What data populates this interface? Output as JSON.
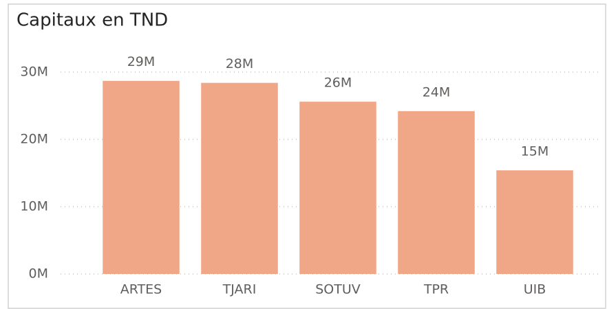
{
  "chart_data": {
    "type": "bar",
    "title": "Capitaux en TND",
    "categories": [
      "ARTES",
      "TJARI",
      "SOTUV",
      "TPR",
      "UIB"
    ],
    "values": [
      28700000,
      28400000,
      25600000,
      24200000,
      15400000
    ],
    "value_labels": [
      "29M",
      "28M",
      "26M",
      "24M",
      "15M"
    ],
    "color": "#f0a787",
    "ylim": [
      0,
      30000000
    ],
    "yticks": [
      {
        "value": 0,
        "label": "0M"
      },
      {
        "value": 10000000,
        "label": "10M"
      },
      {
        "value": 20000000,
        "label": "20M"
      },
      {
        "value": 30000000,
        "label": "30M"
      }
    ],
    "grid": true
  }
}
